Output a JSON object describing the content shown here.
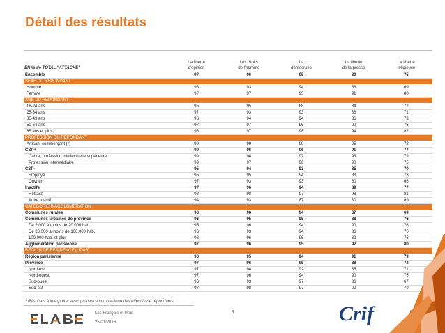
{
  "title": "Détail des résultats",
  "table": {
    "row_label_header": "EN % de TOTAL \"ATTACHE\"",
    "columns": [
      [
        "La liberté",
        "d'opinion"
      ],
      [
        "Les droits",
        "de l'homme"
      ],
      [
        "La",
        "démocratie"
      ],
      [
        "La liberté",
        "de la presse"
      ],
      [
        "La liberté",
        "religieuse"
      ]
    ],
    "rows": [
      {
        "label": "Ensemble",
        "values": [
          "97",
          "96",
          "95",
          "89",
          "75"
        ],
        "kind": "bold"
      },
      {
        "label": "SEXE DU REPONDANT",
        "kind": "section"
      },
      {
        "label": "Homme",
        "values": [
          "96",
          "93",
          "94",
          "86",
          "69"
        ],
        "kind": "lvl1"
      },
      {
        "label": "Femme",
        "values": [
          "97",
          "97",
          "95",
          "91",
          "80"
        ],
        "kind": "lvl1"
      },
      {
        "label": "AGE DU REPONDANT",
        "kind": "section"
      },
      {
        "label": "18-24 ans",
        "values": [
          "95",
          "95",
          "88",
          "84",
          "72"
        ],
        "kind": "lvl1"
      },
      {
        "label": "25-34 ans",
        "values": [
          "97",
          "93",
          "93",
          "86",
          "71"
        ],
        "kind": "lvl1"
      },
      {
        "label": "35-49 ans",
        "values": [
          "96",
          "94",
          "94",
          "86",
          "73"
        ],
        "kind": "lvl1"
      },
      {
        "label": "50-64 ans",
        "values": [
          "97",
          "97",
          "96",
          "90",
          "75"
        ],
        "kind": "lvl1"
      },
      {
        "label": "65 ans et plus",
        "values": [
          "98",
          "97",
          "98",
          "94",
          "82"
        ],
        "kind": "lvl1"
      },
      {
        "label": "PROFESSION DU REPONDANT",
        "kind": "section"
      },
      {
        "label": "Artisan, commerçant (*)",
        "values": [
          "99",
          "99",
          "99",
          "95",
          "78"
        ],
        "kind": "lvl1"
      },
      {
        "label": "CSP+",
        "values": [
          "99",
          "96",
          "96",
          "91",
          "77"
        ],
        "kind": "bold"
      },
      {
        "label": "Cadre, profession intellectuelle supérieure",
        "values": [
          "99",
          "94",
          "97",
          "93",
          "79"
        ],
        "kind": "lvl2"
      },
      {
        "label": "Profession intermédiaire",
        "values": [
          "99",
          "97",
          "96",
          "90",
          "75"
        ],
        "kind": "lvl2"
      },
      {
        "label": "CSP-",
        "values": [
          "95",
          "94",
          "93",
          "85",
          "70"
        ],
        "kind": "bold"
      },
      {
        "label": "Employé",
        "values": [
          "95",
          "95",
          "94",
          "88",
          "73"
        ],
        "kind": "lvl2"
      },
      {
        "label": "Ouvrier",
        "values": [
          "97",
          "93",
          "93",
          "80",
          "66"
        ],
        "kind": "lvl2"
      },
      {
        "label": "Inactifs",
        "values": [
          "97",
          "96",
          "94",
          "89",
          "77"
        ],
        "kind": "bold"
      },
      {
        "label": "Retraité",
        "values": [
          "98",
          "98",
          "97",
          "93",
          "81"
        ],
        "kind": "lvl2"
      },
      {
        "label": "Autre Inactif",
        "values": [
          "94",
          "93",
          "87",
          "80",
          "69"
        ],
        "kind": "lvl2"
      },
      {
        "label": "CATEGORIE D'AGGLOMERATION",
        "kind": "section"
      },
      {
        "label": "Communes rurales",
        "values": [
          "98",
          "96",
          "94",
          "87",
          "69"
        ],
        "kind": "bold"
      },
      {
        "label": "Communes urbaines de province",
        "values": [
          "96",
          "95",
          "95",
          "88",
          "76"
        ],
        "kind": "bold"
      },
      {
        "label": "De 2.000 à moins de 20.000 hab.",
        "values": [
          "95",
          "96",
          "94",
          "90",
          "76"
        ],
        "kind": "lvl2"
      },
      {
        "label": "De 20.000 à moins de 100.000 hab.",
        "values": [
          "96",
          "93",
          "94",
          "86",
          "75"
        ],
        "kind": "lvl2"
      },
      {
        "label": "100.000 hab. et plus",
        "values": [
          "98",
          "96",
          "96",
          "89",
          "76"
        ],
        "kind": "lvl2"
      },
      {
        "label": "Agglomération parisienne",
        "values": [
          "97",
          "96",
          "95",
          "92",
          "80"
        ],
        "kind": "bold"
      },
      {
        "label": "REGION DE RESIDENCE (UDA5)",
        "kind": "section"
      },
      {
        "label": "Région parisienne",
        "values": [
          "96",
          "95",
          "94",
          "91",
          "79"
        ],
        "kind": "bold"
      },
      {
        "label": "Province",
        "values": [
          "97",
          "96",
          "95",
          "88",
          "74"
        ],
        "kind": "bold"
      },
      {
        "label": "Nord-est",
        "values": [
          "97",
          "94",
          "92",
          "85",
          "71"
        ],
        "kind": "lvl2"
      },
      {
        "label": "Nord-ouest",
        "values": [
          "97",
          "96",
          "94",
          "90",
          "75"
        ],
        "kind": "lvl2"
      },
      {
        "label": "Sud-ouest",
        "values": [
          "96",
          "93",
          "97",
          "86",
          "67"
        ],
        "kind": "lvl2"
      },
      {
        "label": "Sud-est",
        "values": [
          "97",
          "98",
          "97",
          "90",
          "79"
        ],
        "kind": "lvl2"
      }
    ]
  },
  "note": "* Résultats à interpréter avec prudence compte-tenu des effectifs de répondants",
  "footer": {
    "logo": "ELABE",
    "subject": "Les Français et l'Iran",
    "date": "25/01/2016",
    "page": "5",
    "client": "Crif"
  },
  "colors": {
    "accent": "#e27a27",
    "brand_blue": "#1f3f79",
    "logo_dark": "#4a4a4a"
  }
}
